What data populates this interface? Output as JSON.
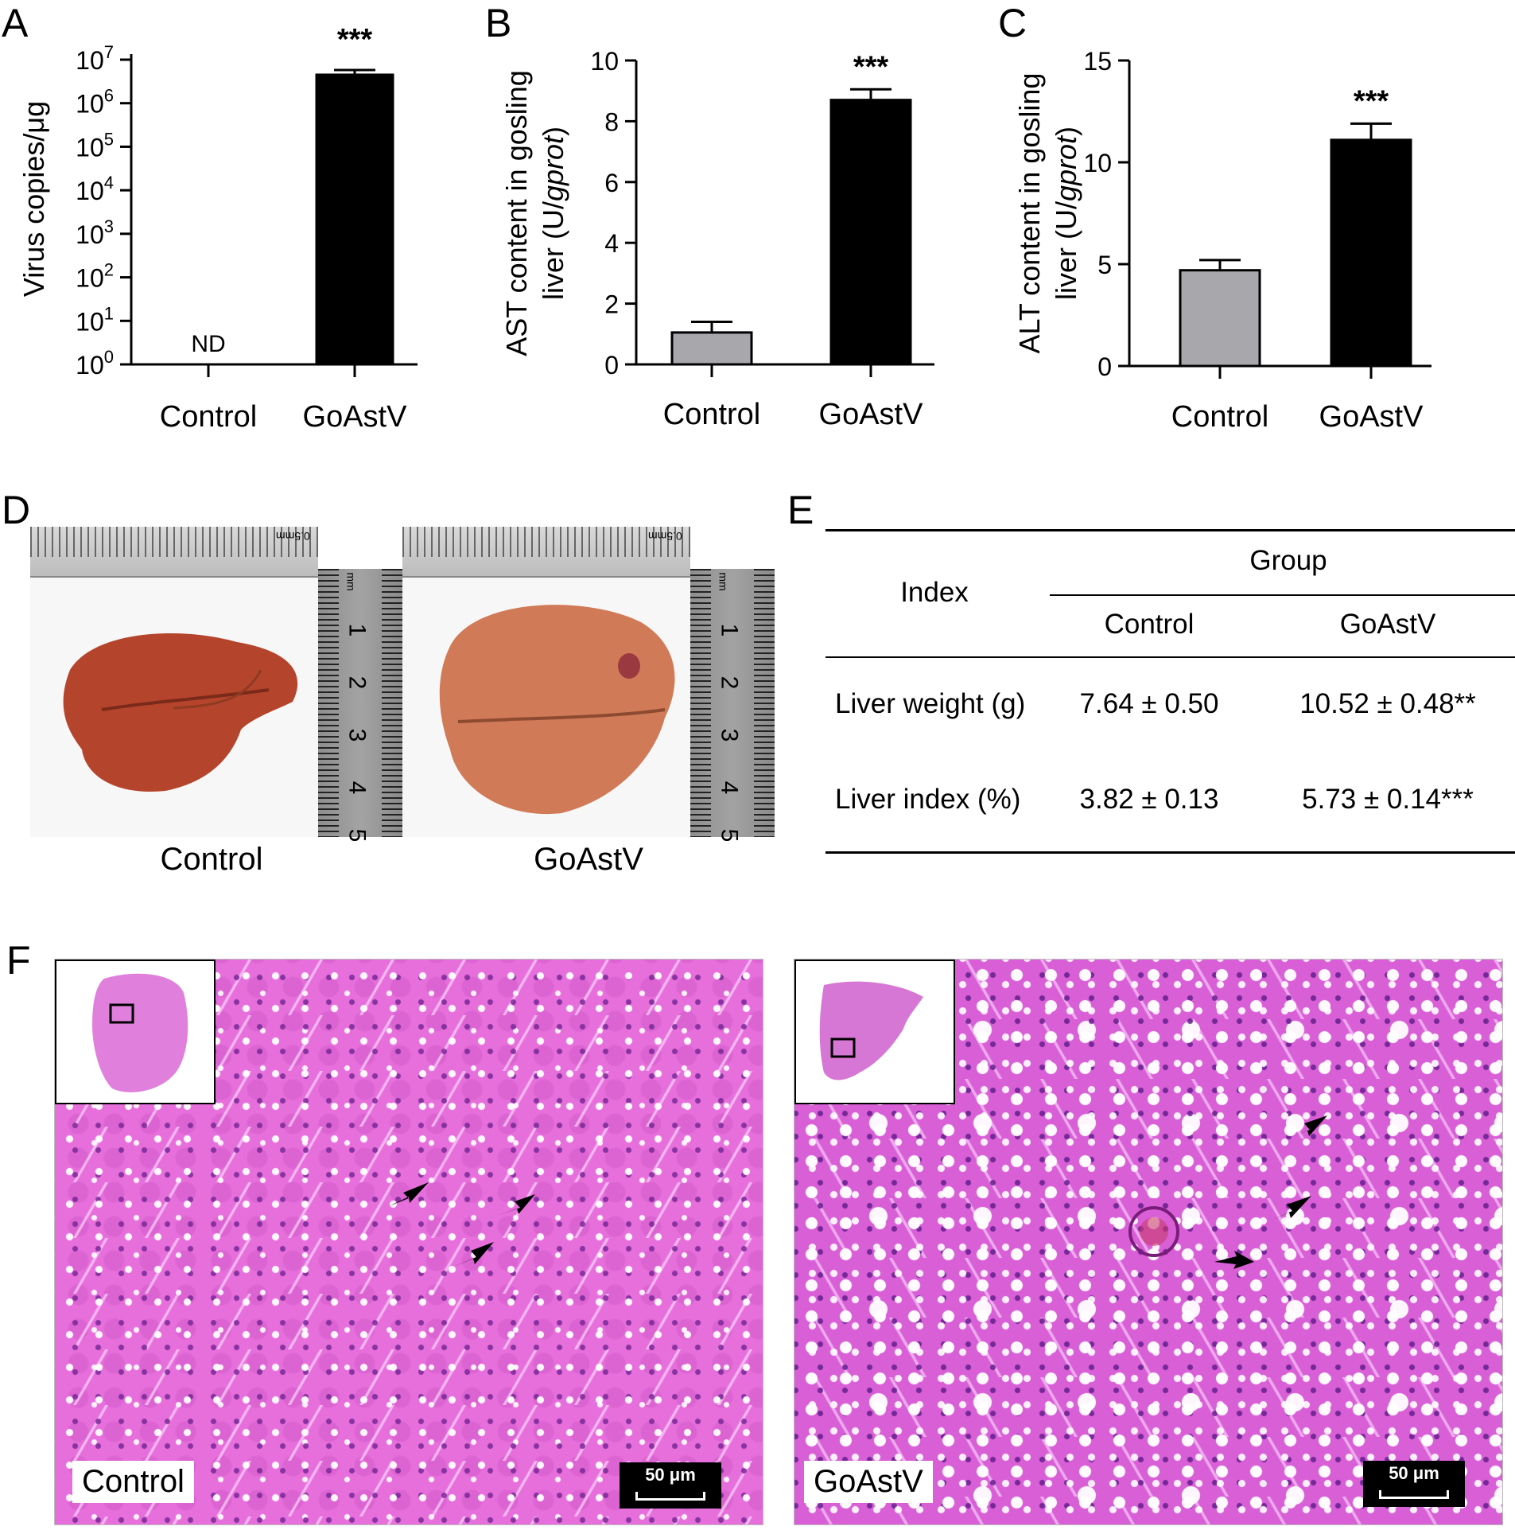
{
  "panels": {
    "a": "A",
    "b": "B",
    "c": "C",
    "d": "D",
    "e": "E",
    "f": "F"
  },
  "chart_data": [
    {
      "type": "bar",
      "categories": [
        "Control",
        "GoAstV"
      ],
      "values": [
        1,
        4500000
      ],
      "errors": [
        0,
        1300000
      ],
      "ylabel": "Virus copies/μg",
      "yscale": "log",
      "ylim": [
        1,
        10000000
      ],
      "ytick_exponents": [
        "0",
        "1",
        "2",
        "3",
        "4",
        "5",
        "6",
        "7"
      ],
      "ytick_base": "10",
      "annotations": [
        "ND",
        "***"
      ],
      "bar_colors": [
        "#a7a7ac",
        "#000000"
      ]
    },
    {
      "type": "bar",
      "categories": [
        "Control",
        "GoAstV"
      ],
      "values": [
        1.05,
        8.7
      ],
      "errors": [
        0.35,
        0.35
      ],
      "ylabel_line1": "AST content in gosling",
      "ylabel_line2_prefix": "liver (U/",
      "ylabel_line2_italic": "gprot",
      "ylabel_line2_suffix": ")",
      "ylim": [
        0,
        10
      ],
      "yticks": [
        "0",
        "2",
        "4",
        "6",
        "8",
        "10"
      ],
      "annotations": [
        "***"
      ],
      "bar_colors": [
        "#a7a7ac",
        "#000000"
      ]
    },
    {
      "type": "bar",
      "categories": [
        "Control",
        "GoAstV"
      ],
      "values": [
        4.7,
        11.1
      ],
      "errors": [
        0.5,
        0.8
      ],
      "ylabel_line1": "ALT content in gosling",
      "ylabel_line2_prefix": "liver (U/",
      "ylabel_line2_italic": "gprot",
      "ylabel_line2_suffix": ")",
      "ylim": [
        0,
        15
      ],
      "yticks": [
        "0",
        "5",
        "10",
        "15"
      ],
      "annotations": [
        "***"
      ],
      "bar_colors": [
        "#a7a7ac",
        "#000000"
      ]
    }
  ],
  "photos": {
    "ruler_text": "0.5mm",
    "ruler_unit": "mm",
    "ruler_numbers": [
      "1",
      "2",
      "3",
      "4",
      "5"
    ],
    "captions": [
      "Control",
      "GoAstV"
    ],
    "liver_colors": [
      "#b5442c",
      "#d17a57"
    ]
  },
  "table": {
    "index_header": "Index",
    "group_header": "Group",
    "columns": [
      "Control",
      "GoAstV"
    ],
    "rows": [
      {
        "label": "Liver weight (g)",
        "control": "7.64 ± 0.50",
        "goastv": "10.52 ± 0.48**"
      },
      {
        "label": "Liver index (%)",
        "control": "3.82 ± 0.13",
        "goastv": "5.73 ± 0.14***"
      }
    ]
  },
  "histology": {
    "labels": [
      "Control",
      "GoAstV"
    ],
    "scale_bar": "50 μm"
  }
}
